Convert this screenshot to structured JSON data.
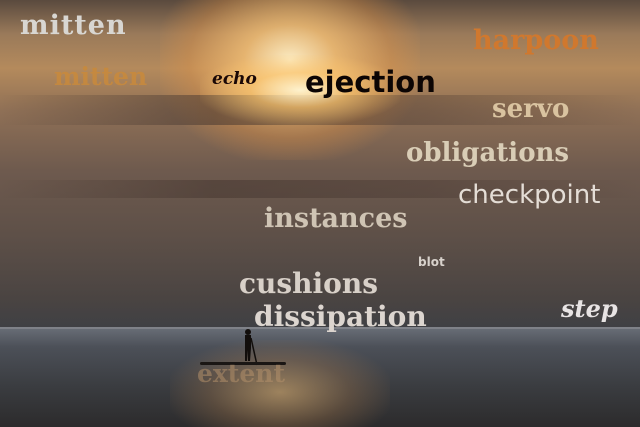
{
  "image": {
    "scene": "sunset-sea-paddleboarder",
    "colors": {
      "sky_glow": "#ffd98a",
      "sea": "#4c5058"
    }
  },
  "words": [
    {
      "text": "mitten",
      "color": "#d8d6d2"
    },
    {
      "text": "mitten",
      "color": "#c98a3c"
    },
    {
      "text": "echo",
      "color": "#1a0806"
    },
    {
      "text": "ejection",
      "color": "#0c0504"
    },
    {
      "text": "harpoon",
      "color": "#d0782e"
    },
    {
      "text": "servo",
      "color": "#d9c3a0"
    },
    {
      "text": "obligations",
      "color": "#d9cdb6"
    },
    {
      "text": "checkpoint",
      "color": "#e4ddd6"
    },
    {
      "text": "instances",
      "color": "#cfc4b4"
    },
    {
      "text": "blot",
      "color": "#d8d2cc"
    },
    {
      "text": "cushions",
      "color": "#d8d0c8"
    },
    {
      "text": "dissipation",
      "color": "#dcd5cf"
    },
    {
      "text": "step",
      "color": "#e8e4e4"
    },
    {
      "text": "extent",
      "color": "#b3906a"
    }
  ]
}
